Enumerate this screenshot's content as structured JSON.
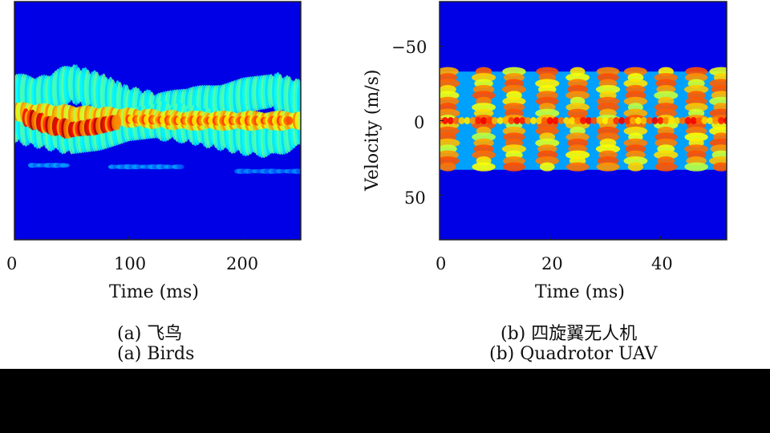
{
  "colors": {
    "background": "#ffffff",
    "bottom_bar": "#000000",
    "jet_low": "#00008f",
    "jet_high": "#800000"
  },
  "chart_data": [
    {
      "id": "a",
      "type": "heatmap",
      "colormap": "jet",
      "xlabel": "Time (ms)",
      "ylabel": "",
      "xticks": [
        "0",
        "100",
        "200"
      ],
      "xtick_values": [
        0,
        100,
        200
      ],
      "xlim": [
        0,
        250
      ],
      "yticks": [],
      "ylim": [
        -80,
        80
      ],
      "caption_cn": "(a) 飞鸟",
      "caption_en": "(a) Birds",
      "bands": [
        {
          "kind": "trail",
          "points": [
            [
              0,
              -18
            ],
            [
              25,
              -18
            ],
            [
              50,
              -25
            ],
            [
              75,
              -19
            ],
            [
              100,
              -10
            ],
            [
              125,
              -6
            ],
            [
              150,
              -8
            ],
            [
              175,
              -13
            ],
            [
              200,
              -17
            ],
            [
              225,
              -20
            ],
            [
              250,
              -14
            ]
          ],
          "halfwidth": 12,
          "level": 0.45
        },
        {
          "kind": "trail",
          "points": [
            [
              0,
              2
            ],
            [
              25,
              6
            ],
            [
              50,
              10
            ],
            [
              75,
              7
            ],
            [
              100,
              3
            ],
            [
              125,
              0
            ],
            [
              150,
              2
            ],
            [
              175,
              6
            ],
            [
              200,
              10
            ],
            [
              225,
              12
            ],
            [
              250,
              5
            ]
          ],
          "halfwidth": 12,
          "level": 0.45
        },
        {
          "kind": "trail",
          "points": [
            [
              0,
              -6
            ],
            [
              25,
              -5
            ],
            [
              50,
              -4
            ],
            [
              75,
              -3
            ],
            [
              100,
              -2
            ],
            [
              125,
              -1
            ],
            [
              150,
              0
            ],
            [
              175,
              0
            ],
            [
              200,
              0
            ],
            [
              225,
              0
            ],
            [
              250,
              0
            ]
          ],
          "halfwidth": 6,
          "level": 0.72
        },
        {
          "kind": "trail",
          "points": [
            [
              10,
              -2
            ],
            [
              30,
              3
            ],
            [
              50,
              6
            ],
            [
              70,
              4
            ],
            [
              90,
              1
            ]
          ],
          "halfwidth": 6,
          "level": 0.92
        },
        {
          "kind": "trail",
          "points": [
            [
              100,
              -1
            ],
            [
              150,
              0
            ],
            [
              200,
              0
            ],
            [
              240,
              0
            ]
          ],
          "halfwidth": 3,
          "level": 0.8
        },
        {
          "kind": "trail",
          "points": [
            [
              15,
              30
            ],
            [
              45,
              30
            ]
          ],
          "halfwidth": 1.5,
          "level": 0.28
        },
        {
          "kind": "trail",
          "points": [
            [
              85,
              31
            ],
            [
              145,
              31
            ]
          ],
          "halfwidth": 1.5,
          "level": 0.28
        },
        {
          "kind": "trail",
          "points": [
            [
              195,
              34
            ],
            [
              250,
              34
            ]
          ],
          "halfwidth": 1.5,
          "level": 0.26
        }
      ]
    },
    {
      "id": "b",
      "type": "heatmap",
      "colormap": "jet",
      "xlabel": "Time (ms)",
      "ylabel": "Velocity (m/s)",
      "xticks": [
        "0",
        "20",
        "40"
      ],
      "xtick_values": [
        0,
        20,
        40
      ],
      "xlim": [
        0,
        52
      ],
      "yticks": [
        "−50",
        "0",
        "50"
      ],
      "ytick_values": [
        -50,
        0,
        50
      ],
      "ylim": [
        -80,
        80
      ],
      "caption_cn": "(b) 四旋翼无人机",
      "caption_en": "(b) Quadrotor UAV",
      "blade_flash_times": [
        1.5,
        8,
        13.5,
        19.5,
        25,
        30.5,
        35.5,
        41,
        46.5,
        51
      ],
      "blade_flash_velocity_range": [
        -33,
        33
      ],
      "blade_flash_level": 0.55,
      "body_line": {
        "velocity": 0,
        "halfwidth": 4,
        "level": 0.85
      },
      "background_level": 0.3
    }
  ]
}
